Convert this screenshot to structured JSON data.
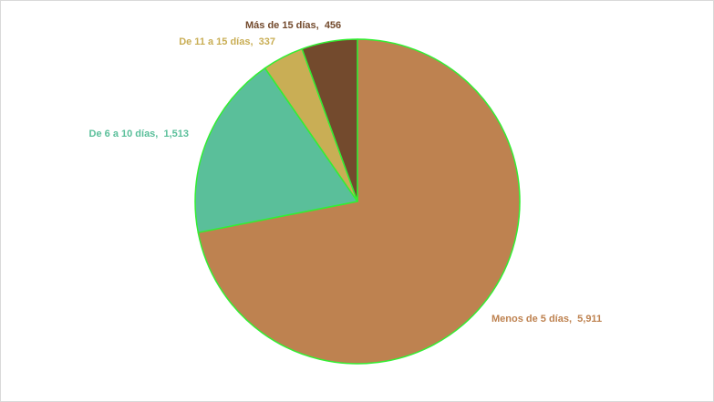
{
  "chart_data": {
    "type": "pie",
    "title": "",
    "categories": [
      "Menos de 5 días",
      "De 6 a 10 días",
      "De 11 a 15 días",
      "Más de 15 días"
    ],
    "values": [
      5911,
      1513,
      337,
      456
    ],
    "value_labels": [
      "5,911",
      "1,513",
      "337",
      "456"
    ],
    "colors": [
      "#BE8250",
      "#5ABF9A",
      "#C9AE55",
      "#734A2D"
    ],
    "slice_border_color": "#33EE33",
    "legend": "none",
    "labels": "outside-colored"
  }
}
